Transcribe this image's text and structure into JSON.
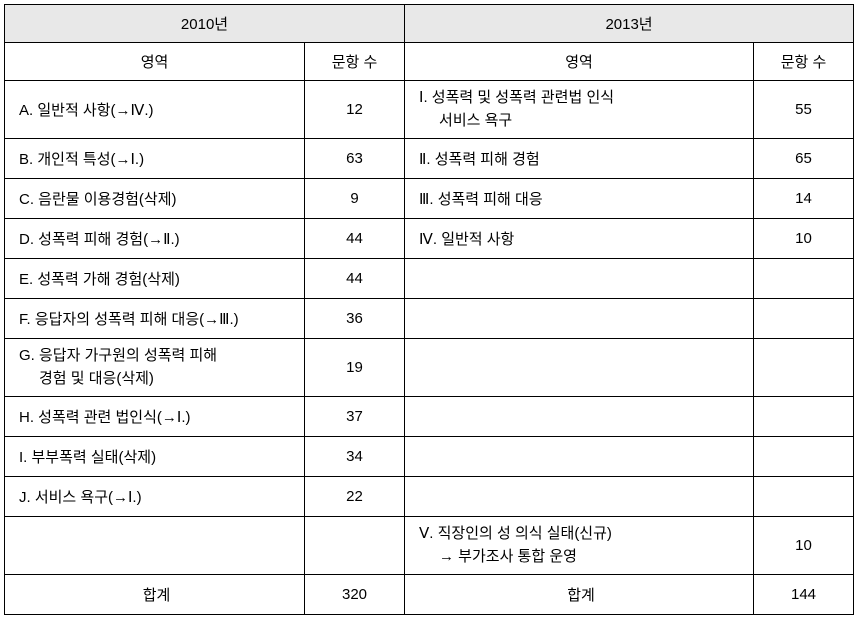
{
  "headers": {
    "year_left": "2010년",
    "year_right": "2013년",
    "domain": "영역",
    "count": "문항 수"
  },
  "left_rows": [
    {
      "domain": "A. 일반적 사항(→Ⅳ.)",
      "count": "12"
    },
    {
      "domain": "B. 개인적 특성(→Ⅰ.)",
      "count": "63"
    },
    {
      "domain": "C. 음란물 이용경험(삭제)",
      "count": "9"
    },
    {
      "domain": "D. 성폭력 피해 경험(→Ⅱ.)",
      "count": "44"
    },
    {
      "domain": "E. 성폭력 가해 경험(삭제)",
      "count": "44"
    },
    {
      "domain": "F. 응답자의 성폭력 피해 대응(→Ⅲ.)",
      "count": "36"
    },
    {
      "domain_line1": "G. 응답자 가구원의 성폭력 피해",
      "domain_line2": "경험 및 대응(삭제)",
      "count": "19",
      "multiline": true
    },
    {
      "domain": "H. 성폭력 관련 법인식(→Ⅰ.)",
      "count": "37"
    },
    {
      "domain": "I. 부부폭력 실태(삭제)",
      "count": "34"
    },
    {
      "domain": "J. 서비스 욕구(→Ⅰ.)",
      "count": "22"
    },
    {
      "domain": "",
      "count": ""
    }
  ],
  "right_rows": [
    {
      "domain_line1": "Ⅰ. 성폭력 및 성폭력 관련법 인식",
      "domain_line2": "서비스 욕구",
      "count": "55",
      "multiline": true
    },
    {
      "domain": "Ⅱ. 성폭력 피해 경험",
      "count": "65"
    },
    {
      "domain": "Ⅲ. 성폭력 피해 대응",
      "count": "14"
    },
    {
      "domain": "Ⅳ. 일반적 사항",
      "count": "10"
    },
    {
      "domain": "",
      "count": ""
    },
    {
      "domain": "",
      "count": ""
    },
    {
      "domain": "",
      "count": ""
    },
    {
      "domain": "",
      "count": ""
    },
    {
      "domain": "",
      "count": ""
    },
    {
      "domain": "",
      "count": ""
    },
    {
      "domain_line1": "Ⅴ. 직장인의 성 의식 실태(신규)",
      "domain_line2": "→ 부가조사 통합 운영",
      "count": "10",
      "multiline": true
    }
  ],
  "totals": {
    "label": "합계",
    "left_count": "320",
    "right_count": "144"
  }
}
